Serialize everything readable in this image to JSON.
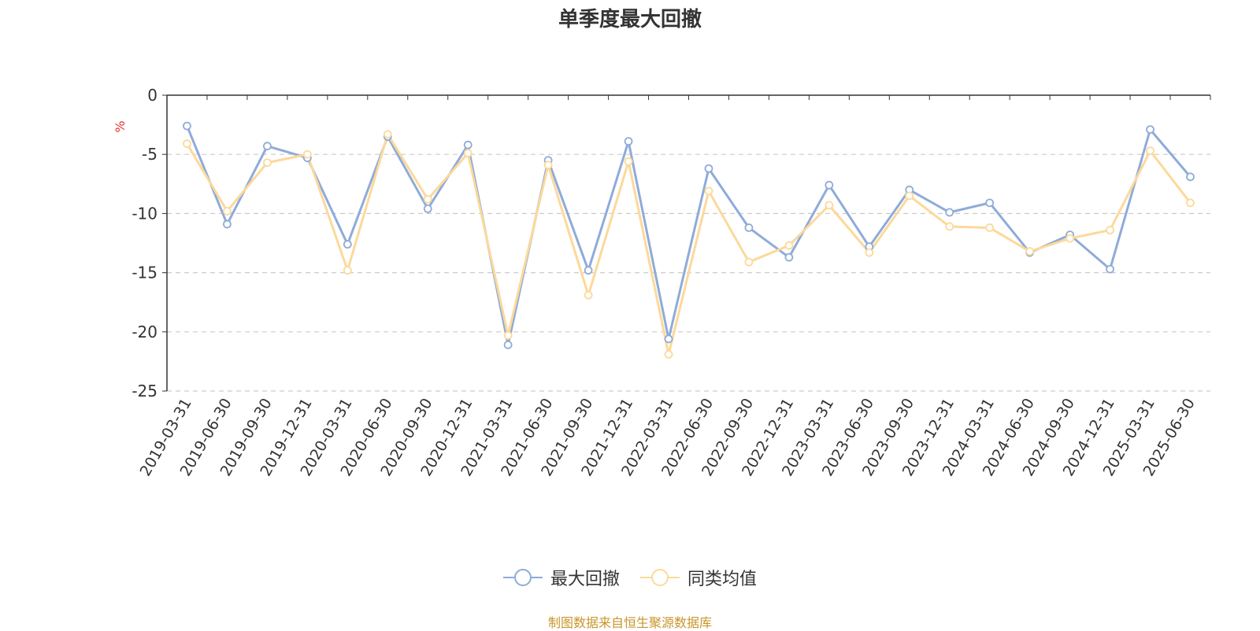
{
  "title": "单季度最大回撤",
  "source": "制图数据来自恒生聚源数据库",
  "colors": {
    "series1": "#8fabd9",
    "series2": "#fcd99a",
    "grid": "#cccccc",
    "axis": "#333333",
    "unit": "#e0322c",
    "source": "#c8962a"
  },
  "legend": [
    {
      "name": "最大回撤",
      "color": "#8fabd9"
    },
    {
      "name": "同类均值",
      "color": "#fcd99a"
    }
  ],
  "chart_data": {
    "type": "line",
    "title": "单季度最大回撤",
    "ylabel": "%",
    "ylim": [
      -25,
      0
    ],
    "yticks": [
      0,
      -5,
      -10,
      -15,
      -20,
      -25
    ],
    "grid": true,
    "legend_position": "bottom",
    "x": [
      "2019-03-31",
      "2019-06-30",
      "2019-09-30",
      "2019-12-31",
      "2020-03-31",
      "2020-06-30",
      "2020-09-30",
      "2020-12-31",
      "2021-03-31",
      "2021-06-30",
      "2021-09-30",
      "2021-12-31",
      "2022-03-31",
      "2022-06-30",
      "2022-09-30",
      "2022-12-31",
      "2023-03-31",
      "2023-06-30",
      "2023-09-30",
      "2023-12-31",
      "2024-03-31",
      "2024-06-30",
      "2024-09-30",
      "2024-12-31",
      "2025-03-31",
      "2025-06-30"
    ],
    "series": [
      {
        "name": "最大回撤",
        "values": [
          -2.6,
          -10.9,
          -4.3,
          -5.3,
          -12.6,
          -3.5,
          -9.6,
          -4.2,
          -21.1,
          -5.5,
          -14.8,
          -3.9,
          -20.6,
          -6.2,
          -11.2,
          -13.7,
          -7.6,
          -12.8,
          -8.0,
          -9.9,
          -9.1,
          -13.3,
          -11.8,
          -14.7,
          -2.9,
          -6.9
        ]
      },
      {
        "name": "同类均值",
        "values": [
          -4.1,
          -9.8,
          -5.7,
          -5.0,
          -14.8,
          -3.3,
          -8.8,
          -4.9,
          -20.3,
          -5.9,
          -16.9,
          -5.6,
          -21.9,
          -8.1,
          -14.1,
          -12.7,
          -9.3,
          -13.3,
          -8.5,
          -11.1,
          -11.2,
          -13.2,
          -12.1,
          -11.4,
          -4.7,
          -9.1
        ]
      }
    ]
  }
}
